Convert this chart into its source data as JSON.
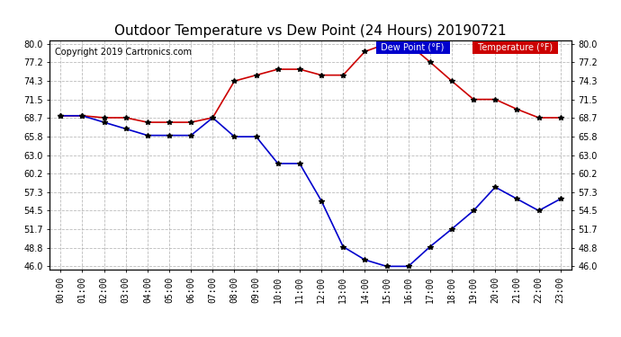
{
  "title": "Outdoor Temperature vs Dew Point (24 Hours) 20190721",
  "copyright": "Copyright 2019 Cartronics.com",
  "x_labels": [
    "00:00",
    "01:00",
    "02:00",
    "03:00",
    "04:00",
    "05:00",
    "06:00",
    "07:00",
    "08:00",
    "09:00",
    "10:00",
    "11:00",
    "12:00",
    "13:00",
    "14:00",
    "15:00",
    "16:00",
    "17:00",
    "18:00",
    "19:00",
    "20:00",
    "21:00",
    "22:00",
    "23:00"
  ],
  "temperature": [
    69.0,
    69.0,
    68.7,
    68.7,
    68.0,
    68.0,
    68.0,
    68.7,
    74.3,
    75.2,
    76.1,
    76.1,
    75.2,
    75.2,
    78.8,
    80.0,
    80.0,
    77.2,
    74.3,
    71.5,
    71.5,
    70.0,
    68.7,
    68.7
  ],
  "dew_point": [
    69.0,
    69.0,
    68.0,
    67.0,
    66.0,
    66.0,
    66.0,
    68.7,
    65.8,
    65.8,
    61.7,
    61.7,
    56.0,
    49.0,
    47.0,
    46.0,
    46.0,
    49.0,
    51.7,
    54.5,
    58.1,
    56.3,
    54.5,
    56.3
  ],
  "temp_color": "#cc0000",
  "dew_color": "#0000cc",
  "marker": "*",
  "marker_color": "#000000",
  "markersize": 4,
  "linewidth": 1.2,
  "ylim_min": 45.5,
  "ylim_max": 80.5,
  "yticks": [
    46.0,
    48.8,
    51.7,
    54.5,
    57.3,
    60.2,
    63.0,
    65.8,
    68.7,
    71.5,
    74.3,
    77.2,
    80.0
  ],
  "grid_color": "#aaaaaa",
  "grid_style": "--",
  "grid_alpha": 0.8,
  "background_color": "#ffffff",
  "plot_bg_color": "#ffffff",
  "legend_dew_label": "Dew Point (°F)",
  "legend_temp_label": "Temperature (°F)",
  "title_fontsize": 11,
  "axis_fontsize": 7,
  "copyright_fontsize": 7
}
